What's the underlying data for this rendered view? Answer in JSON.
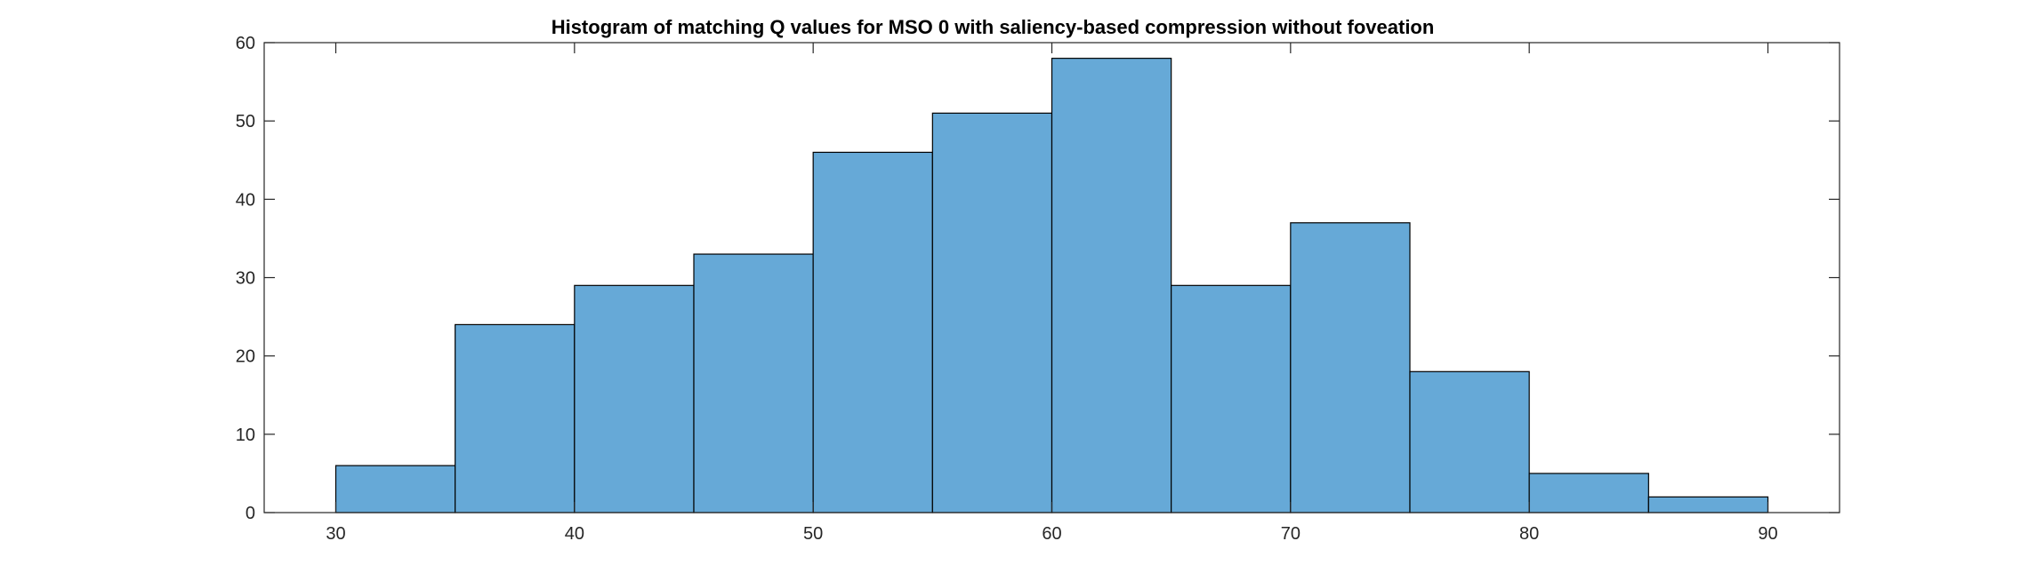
{
  "chart_data": {
    "type": "bar",
    "title": "Histogram of matching Q values for MSO 0 with saliency-based compression without foveation",
    "xlabel": "",
    "ylabel": "",
    "bin_edges": [
      30,
      35,
      40,
      45,
      50,
      55,
      60,
      65,
      70,
      75,
      80,
      85,
      90
    ],
    "values": [
      6,
      24,
      29,
      33,
      46,
      51,
      58,
      29,
      37,
      18,
      5,
      2
    ],
    "xlim": [
      27,
      93
    ],
    "ylim": [
      0,
      60
    ],
    "xticks": [
      30,
      40,
      50,
      60,
      70,
      80,
      90
    ],
    "yticks": [
      0,
      10,
      20,
      30,
      40,
      50,
      60
    ],
    "bar_color": "#66a9d7",
    "edge_color": "#000000",
    "grid": false,
    "box": true
  }
}
